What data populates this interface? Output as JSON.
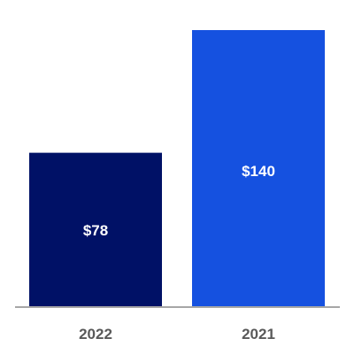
{
  "chart_data": {
    "type": "bar",
    "categories": [
      "2022",
      "2021"
    ],
    "values": [
      78,
      140
    ],
    "data_labels": [
      "$78",
      "$140"
    ],
    "bar_colors": [
      "#001166",
      "#1551e0"
    ],
    "axis_color": "#a6a6a6",
    "ylim": [
      0,
      140
    ],
    "title": "",
    "xlabel": "",
    "ylabel": "",
    "grid": false,
    "legend": "none"
  }
}
